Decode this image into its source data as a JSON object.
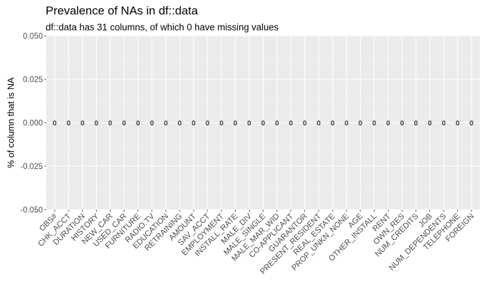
{
  "chart_data": {
    "type": "bar",
    "title": "Prevalence of NAs in df::data",
    "subtitle": "df::data has 31 columns, of which 0 have missing values",
    "xlabel": "",
    "ylabel": "% of column that is NA",
    "ylim": [
      -0.05,
      0.05
    ],
    "y_ticks": [
      "-0.050",
      "-0.025",
      "0.000",
      "0.025",
      "0.050"
    ],
    "y_tick_values": [
      -0.05,
      -0.025,
      0,
      0.025,
      0.05
    ],
    "grid": true,
    "categories": [
      "OBS#",
      "CHK_ACCT",
      "DURATION",
      "HISTORY",
      "NEW_CAR",
      "USED_CAR",
      "FURNITURE",
      "RADIO.TV",
      "EDUCATION",
      "RETRAINING",
      "AMOUNT",
      "SAV_ACCT",
      "EMPLOYMENT",
      "INSTALL_RATE",
      "MALE_DIV",
      "MALE_SINGLE",
      "MALE_MAR_WID",
      "CO-APPLICANT",
      "GUARANTOR",
      "PRESENT_RESIDENT",
      "REAL_ESTATE",
      "PROP_UNKN_NONE",
      "AGE",
      "OTHER_INSTALL",
      "RENT",
      "OWN_RES",
      "NUM_CREDITS",
      "JOB",
      "NUM_DEPENDENTS",
      "TELEPHONE",
      "FOREIGN"
    ],
    "values": [
      0,
      0,
      0,
      0,
      0,
      0,
      0,
      0,
      0,
      0,
      0,
      0,
      0,
      0,
      0,
      0,
      0,
      0,
      0,
      0,
      0,
      0,
      0,
      0,
      0,
      0,
      0,
      0,
      0,
      0,
      0
    ],
    "data_labels": [
      "0",
      "0",
      "0",
      "0",
      "0",
      "0",
      "0",
      "0",
      "0",
      "0",
      "0",
      "0",
      "0",
      "0",
      "0",
      "0",
      "0",
      "0",
      "0",
      "0",
      "0",
      "0",
      "0",
      "0",
      "0",
      "0",
      "0",
      "0",
      "0",
      "0",
      "0"
    ],
    "colors": {
      "panel": "#ebebeb",
      "grid_major": "#ffffff",
      "tick_text": "#4d4d4d"
    }
  }
}
